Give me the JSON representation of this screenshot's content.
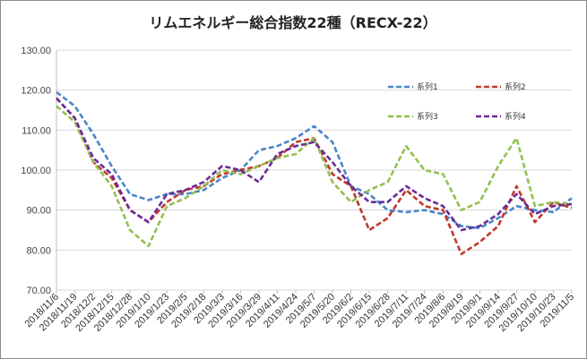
{
  "chart_data": {
    "type": "line",
    "title": "リムエネルギー総合指数22種（RECX-22）",
    "xlabel": "",
    "ylabel": "",
    "ylim": [
      70,
      130
    ],
    "yticks": [
      "70.00",
      "80.00",
      "90.00",
      "100.00",
      "110.00",
      "120.00",
      "130.00"
    ],
    "grid": true,
    "legend_position": "top-right",
    "categories": [
      "2018/11/6",
      "2018/11/19",
      "2018/12/2",
      "2018/12/15",
      "2018/12/28",
      "2019/1/10",
      "2019/1/23",
      "2019/2/5",
      "2019/2/18",
      "2019/3/3",
      "2019/3/16",
      "2019/3/29",
      "2019/4/11",
      "2019/4/24",
      "2019/5/7",
      "2019/5/20",
      "2019/6/2",
      "2019/6/15",
      "2019/6/28",
      "2019/7/11",
      "2019/7/24",
      "2019/8/6",
      "2019/8/19",
      "2019/9/1",
      "2019/9/14",
      "2019/9/27",
      "2019/10/10",
      "2019/10/23",
      "2019/11/5"
    ],
    "series": [
      {
        "name": "系列1",
        "color": "#4a86c8",
        "dash": "6,3",
        "values": [
          119.5,
          116,
          109,
          101,
          94,
          92.5,
          94,
          94,
          95,
          98,
          100,
          105,
          106,
          108,
          111,
          107,
          96,
          94,
          90,
          89.5,
          90,
          89,
          86,
          85.5,
          88,
          91,
          90,
          89.5,
          93
        ]
      },
      {
        "name": "系列2",
        "color": "#c0392b",
        "dash": "6,3",
        "values": [
          118,
          113,
          102,
          98,
          90,
          87,
          92,
          95,
          96,
          99,
          100,
          101,
          103,
          107,
          108,
          99,
          96,
          85,
          88,
          95,
          91,
          90,
          79,
          82,
          86,
          96,
          87,
          92,
          90.5
        ]
      },
      {
        "name": "系列3",
        "color": "#92c050",
        "dash": "6,3",
        "values": [
          116,
          112,
          102,
          96,
          85,
          81,
          91,
          93,
          96,
          100,
          99,
          101,
          103,
          104,
          108,
          97,
          92,
          95,
          97,
          106,
          100,
          99,
          90,
          92,
          101,
          108,
          91,
          92,
          91.5
        ]
      },
      {
        "name": "系列4",
        "color": "#6a2b9a",
        "dash": "6,3",
        "values": [
          118,
          113,
          103,
          99,
          90,
          87,
          94,
          95,
          97,
          101,
          100,
          97,
          104,
          106,
          107,
          102,
          96,
          92,
          92,
          96,
          93,
          91,
          85,
          86,
          89,
          94,
          89,
          91,
          91.5
        ]
      }
    ]
  }
}
